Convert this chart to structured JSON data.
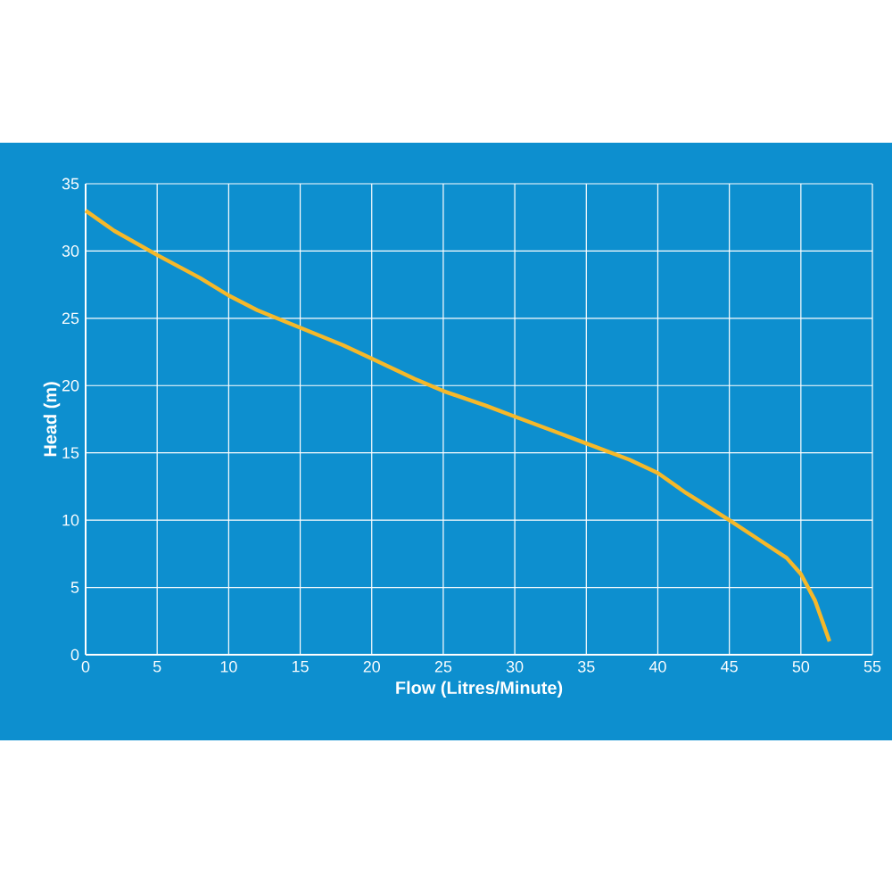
{
  "chart_data": {
    "type": "line",
    "xlabel": "Flow (Litres/Minute)",
    "ylabel": "Head (m)",
    "x": [
      0,
      2,
      5,
      8,
      10,
      12,
      15,
      18,
      20,
      23,
      25,
      28,
      30,
      33,
      35,
      38,
      40,
      42,
      45,
      47,
      49,
      50,
      50.5,
      51,
      51.5,
      52
    ],
    "series": [
      {
        "color": "#f5b82a",
        "values": [
          33,
          31.5,
          29.7,
          28,
          26.7,
          25.6,
          24.3,
          23,
          22,
          20.5,
          19.6,
          18.5,
          17.7,
          16.5,
          15.7,
          14.5,
          13.5,
          12,
          10,
          8.6,
          7.2,
          6,
          5,
          4,
          2.5,
          1
        ]
      }
    ],
    "xlim": [
      0,
      55
    ],
    "xticks": [
      0,
      5,
      10,
      15,
      20,
      25,
      30,
      35,
      40,
      45,
      50,
      55
    ],
    "ylim": [
      0,
      35
    ],
    "yticks": [
      0,
      5,
      10,
      15,
      20,
      25,
      30,
      35
    ],
    "grid": true,
    "marker": "none",
    "line_style": "solid"
  }
}
